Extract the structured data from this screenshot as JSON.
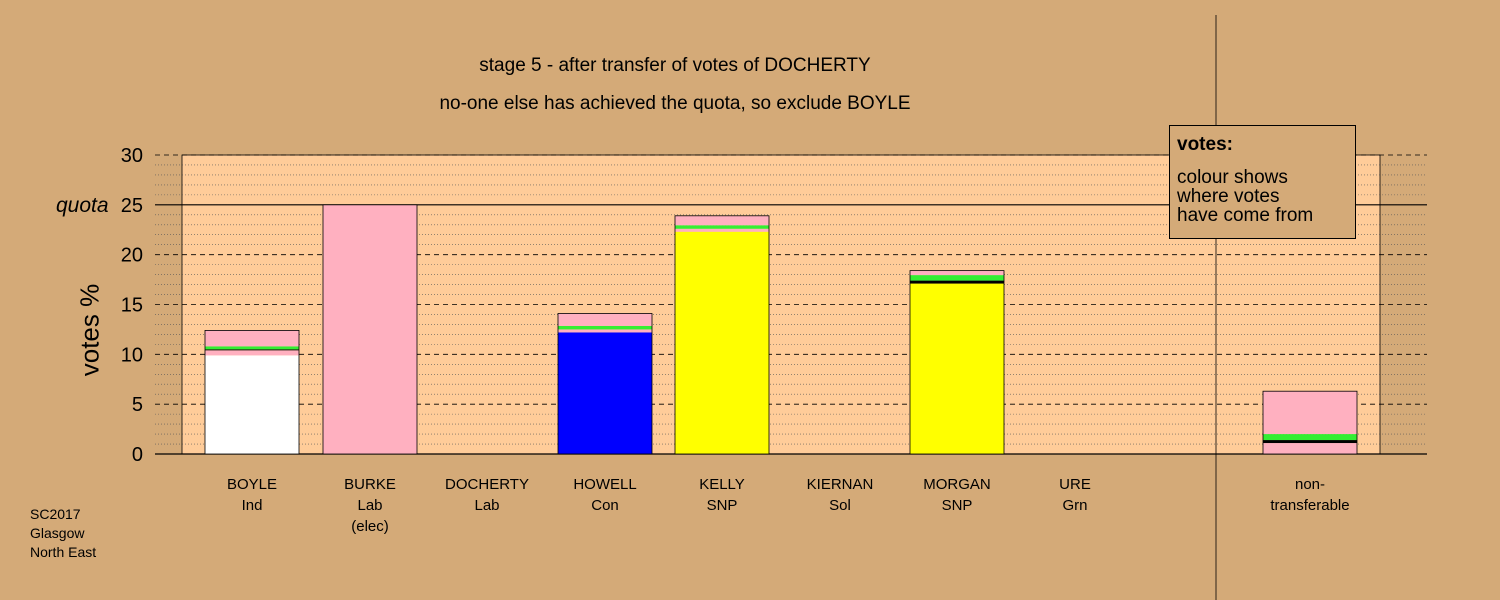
{
  "chart_data": {
    "type": "bar",
    "title": "stage 5 - after transfer of votes of DOCHERTY",
    "subtitle": "no-one else has achieved the quota, so exclude BOYLE",
    "ylabel": "votes %",
    "ylim": [
      0,
      30
    ],
    "yticks": [
      0,
      5,
      10,
      15,
      20,
      25,
      30
    ],
    "quota": {
      "label": "quota",
      "value": 25
    },
    "categories": [
      {
        "name": "BOYLE",
        "party": "Ind",
        "status": ""
      },
      {
        "name": "BURKE",
        "party": "Lab",
        "status": "(elec)"
      },
      {
        "name": "DOCHERTY",
        "party": "Lab",
        "status": ""
      },
      {
        "name": "HOWELL",
        "party": "Con",
        "status": ""
      },
      {
        "name": "KELLY",
        "party": "SNP",
        "status": ""
      },
      {
        "name": "KIERNAN",
        "party": "Sol",
        "status": ""
      },
      {
        "name": "MORGAN",
        "party": "SNP",
        "status": ""
      },
      {
        "name": "URE",
        "party": "Grn",
        "status": ""
      },
      {
        "name": "non-",
        "party": "transferable",
        "status": ""
      }
    ],
    "bars": [
      {
        "segments": [
          {
            "value": 9.9,
            "color": "#ffffff"
          },
          {
            "value": 0.5,
            "color": "#ffb0c0"
          },
          {
            "value": 0.1,
            "color": "#000000"
          },
          {
            "value": 0.3,
            "color": "#33ee33"
          },
          {
            "value": 1.6,
            "color": "#ffb0c0"
          }
        ]
      },
      {
        "segments": [
          {
            "value": 25.0,
            "color": "#ffb0c0"
          }
        ]
      },
      {
        "segments": []
      },
      {
        "segments": [
          {
            "value": 12.2,
            "color": "#0000ff"
          },
          {
            "value": 0.3,
            "color": "#ffb0c0"
          },
          {
            "value": 0.35,
            "color": "#33ee33"
          },
          {
            "value": 1.25,
            "color": "#ffb0c0"
          }
        ]
      },
      {
        "segments": [
          {
            "value": 22.3,
            "color": "#ffff00"
          },
          {
            "value": 0.3,
            "color": "#ffb0c0"
          },
          {
            "value": 0.35,
            "color": "#33ee33"
          },
          {
            "value": 0.95,
            "color": "#ffb0c0"
          }
        ]
      },
      {
        "segments": []
      },
      {
        "segments": [
          {
            "value": 17.1,
            "color": "#ffff00"
          },
          {
            "value": 0.3,
            "color": "#000000"
          },
          {
            "value": 0.55,
            "color": "#33ee33"
          },
          {
            "value": 0.45,
            "color": "#ffb0c0"
          }
        ]
      },
      {
        "segments": []
      },
      {
        "segments": [
          {
            "value": 1.1,
            "color": "#ffb0c0"
          },
          {
            "value": 0.3,
            "color": "#000000"
          },
          {
            "value": 0.6,
            "color": "#33ee33"
          },
          {
            "value": 4.3,
            "color": "#ffb0c0"
          }
        ]
      }
    ]
  },
  "legend": {
    "heading": "votes:",
    "lines": [
      "colour shows",
      "where votes",
      "have come from"
    ]
  },
  "footer": [
    "SC2017",
    "Glasgow",
    "North East"
  ],
  "colors": {
    "background": "#d4aa78",
    "plot_area": "#ffcc99",
    "pink": "#ffb0c0",
    "green": "#33ee33",
    "yellow": "#ffff00",
    "blue": "#0000ff"
  }
}
